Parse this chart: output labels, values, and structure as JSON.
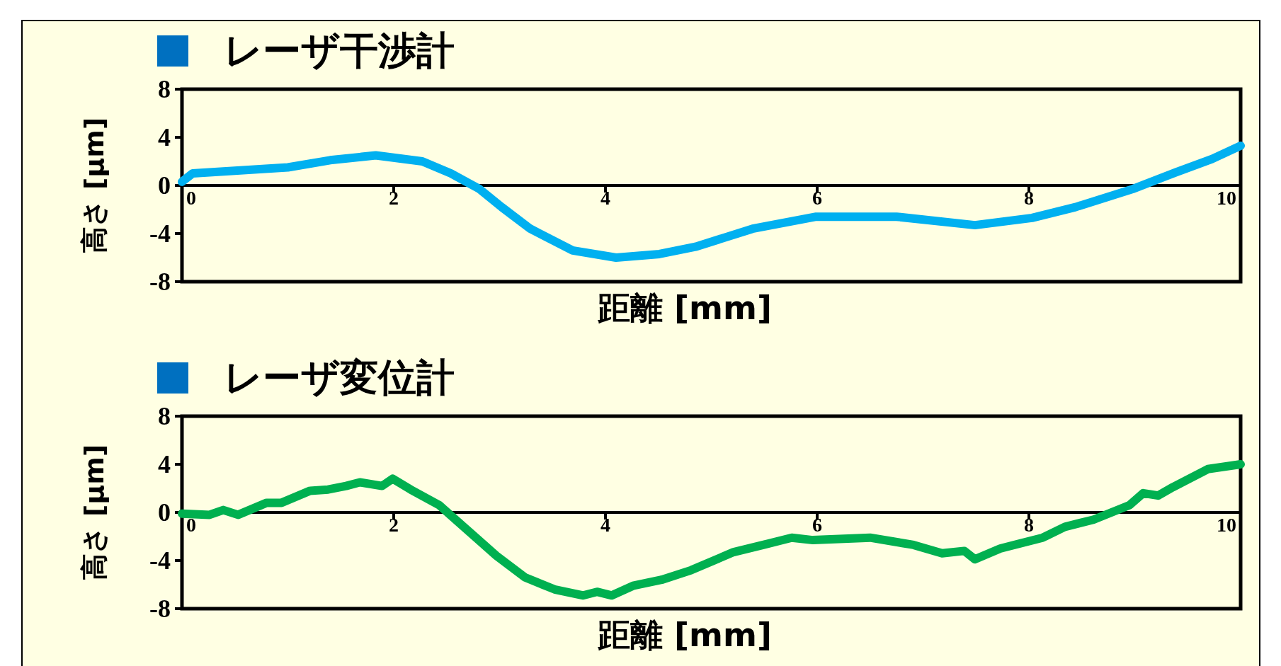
{
  "chart_data": [
    {
      "type": "line",
      "title": "レーザ干渉計",
      "xlabel": "距離 [mm]",
      "ylabel": "高さ [μm]",
      "color": "#00b0f0",
      "x": [
        0,
        0.1,
        1.0,
        1.4,
        1.83,
        2.27,
        2.54,
        2.81,
        3.02,
        3.29,
        3.69,
        4.1,
        4.51,
        4.85,
        5.39,
        5.99,
        6.75,
        7.49,
        8.03,
        8.44,
        8.98,
        9.39,
        9.73,
        10
      ],
      "values": [
        0.3,
        1.0,
        1.5,
        2.1,
        2.5,
        2.0,
        1.0,
        -0.3,
        -1.8,
        -3.6,
        -5.4,
        -6.0,
        -5.7,
        -5.1,
        -3.6,
        -2.6,
        -2.6,
        -3.3,
        -2.7,
        -1.8,
        -0.3,
        1.1,
        2.2,
        3.3
      ],
      "xlim": [
        0,
        10
      ],
      "ylim": [
        -8,
        8
      ],
      "xticks": [
        0,
        2,
        4,
        6,
        8,
        10
      ],
      "yticks": [
        -8,
        -4,
        0,
        4,
        8
      ]
    },
    {
      "type": "line",
      "title": "レーザ変位計",
      "xlabel": "距離 [mm]",
      "ylabel": "高さ [μm]",
      "color": "#00b050",
      "x": [
        0,
        0.26,
        0.39,
        0.53,
        0.8,
        0.94,
        1.21,
        1.38,
        1.55,
        1.68,
        1.89,
        1.99,
        2.16,
        2.43,
        2.7,
        2.97,
        3.24,
        3.52,
        3.79,
        3.92,
        4.06,
        4.26,
        4.53,
        4.81,
        5.21,
        5.49,
        5.76,
        5.96,
        6.5,
        6.91,
        7.18,
        7.39,
        7.49,
        7.73,
        8.13,
        8.34,
        8.61,
        8.95,
        9.08,
        9.22,
        9.36,
        9.69,
        10
      ],
      "values": [
        -0.1,
        -0.2,
        0.2,
        -0.2,
        0.8,
        0.8,
        1.8,
        1.9,
        2.2,
        2.5,
        2.2,
        2.8,
        1.9,
        0.6,
        -1.5,
        -3.6,
        -5.4,
        -6.4,
        -6.9,
        -6.6,
        -6.9,
        -6.1,
        -5.6,
        -4.8,
        -3.3,
        -2.7,
        -2.1,
        -2.3,
        -2.1,
        -2.7,
        -3.4,
        -3.2,
        -3.9,
        -3.0,
        -2.1,
        -1.2,
        -0.6,
        0.6,
        1.6,
        1.4,
        2.1,
        3.6,
        4.0
      ],
      "xlim": [
        0,
        10
      ],
      "ylim": [
        -8,
        8
      ],
      "xticks": [
        0,
        2,
        4,
        6,
        8,
        10
      ],
      "yticks": [
        -8,
        -4,
        0,
        4,
        8
      ]
    }
  ]
}
